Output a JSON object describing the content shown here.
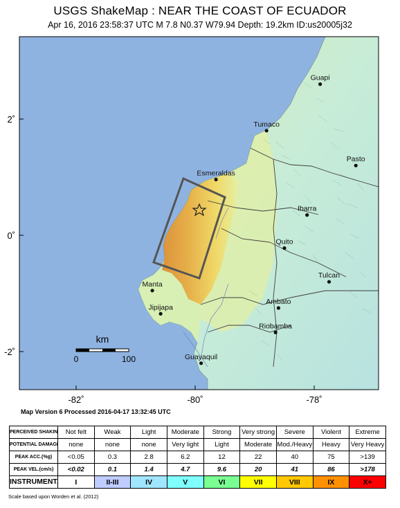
{
  "header": {
    "title": "USGS ShakeMap : NEAR THE COAST OF ECUADOR",
    "subtitle": "Apr 16, 2016 23:58:37 UTC   M 7.8   N0.37 W79.94   Depth: 19.2km   ID:us20005j32"
  },
  "map": {
    "lat_ticks": [
      {
        "label": "2˚",
        "value": 2
      },
      {
        "label": "0˚",
        "value": 0
      },
      {
        "label": "-2˚",
        "value": -2
      }
    ],
    "lon_ticks": [
      {
        "label": "-82˚",
        "value": -82
      },
      {
        "label": "-80˚",
        "value": -80
      },
      {
        "label": "-78˚",
        "value": -78
      }
    ],
    "cities": [
      {
        "name": "Tumaco",
        "lat": 1.8,
        "lon": -78.8
      },
      {
        "name": "Pasto",
        "lat": 1.2,
        "lon": -77.3
      },
      {
        "name": "Esmeraldas",
        "lat": 0.96,
        "lon": -79.65
      },
      {
        "name": "Ibarra",
        "lat": 0.35,
        "lon": -78.12
      },
      {
        "name": "Quito",
        "lat": -0.22,
        "lon": -78.5
      },
      {
        "name": "Manta",
        "lat": -0.95,
        "lon": -80.72
      },
      {
        "name": "Tulcan",
        "lat": -0.8,
        "lon": -77.75
      },
      {
        "name": "Jipijapa",
        "lat": -1.35,
        "lon": -80.58
      },
      {
        "name": "Ambato",
        "lat": -1.25,
        "lon": -78.6
      },
      {
        "name": "Riobamba",
        "lat": -1.67,
        "lon": -78.65
      },
      {
        "name": "Guayaquil",
        "lat": -2.2,
        "lon": -79.9
      },
      {
        "name": "Guapi",
        "lat": 2.6,
        "lon": -77.9
      }
    ],
    "epicenter": {
      "lat": 0.37,
      "lon": -79.94
    },
    "scale_bar": {
      "unit": "km",
      "start": "0",
      "end": "100"
    },
    "colors": {
      "ocean": "#8fb3e0",
      "land_low": "#c9ecdc",
      "land_mid": "#d6f0b4",
      "shake_vi": "#f3d75e",
      "shake_vii": "#e9ab3e",
      "shake_viii": "#dd8a2e"
    }
  },
  "version_text": "Map Version 6 Processed 2016-04-17 13:32:45 UTC",
  "legend": {
    "row_headers": {
      "shaking": "PERCEIVED SHAKING",
      "damage": "POTENTIAL DAMAGE",
      "acc": "PEAK ACC.(%g)",
      "vel": "PEAK VEL.(cm/s)",
      "intensity": "INSTRUMENTAL INTENSITY"
    },
    "shaking": [
      "Not felt",
      "Weak",
      "Light",
      "Moderate",
      "Strong",
      "Very strong",
      "Severe",
      "Violent",
      "Extreme"
    ],
    "damage": [
      "none",
      "none",
      "none",
      "Very light",
      "Light",
      "Moderate",
      "Mod./Heavy",
      "Heavy",
      "Very Heavy"
    ],
    "acc": [
      "<0.05",
      "0.3",
      "2.8",
      "6.2",
      "12",
      "22",
      "40",
      "75",
      ">139"
    ],
    "vel": [
      "<0.02",
      "0.1",
      "1.4",
      "4.7",
      "9.6",
      "20",
      "41",
      "86",
      ">178"
    ],
    "intensity": [
      "I",
      "II-III",
      "IV",
      "V",
      "VI",
      "VII",
      "VIII",
      "IX",
      "X+"
    ],
    "intensity_colors": [
      "#ffffff",
      "#bfccff",
      "#a0e6ff",
      "#80ffff",
      "#7aff93",
      "#ffff00",
      "#ffc800",
      "#ff9100",
      "#ff0000"
    ],
    "note": "Scale based upon Worden et al. (2012)"
  }
}
